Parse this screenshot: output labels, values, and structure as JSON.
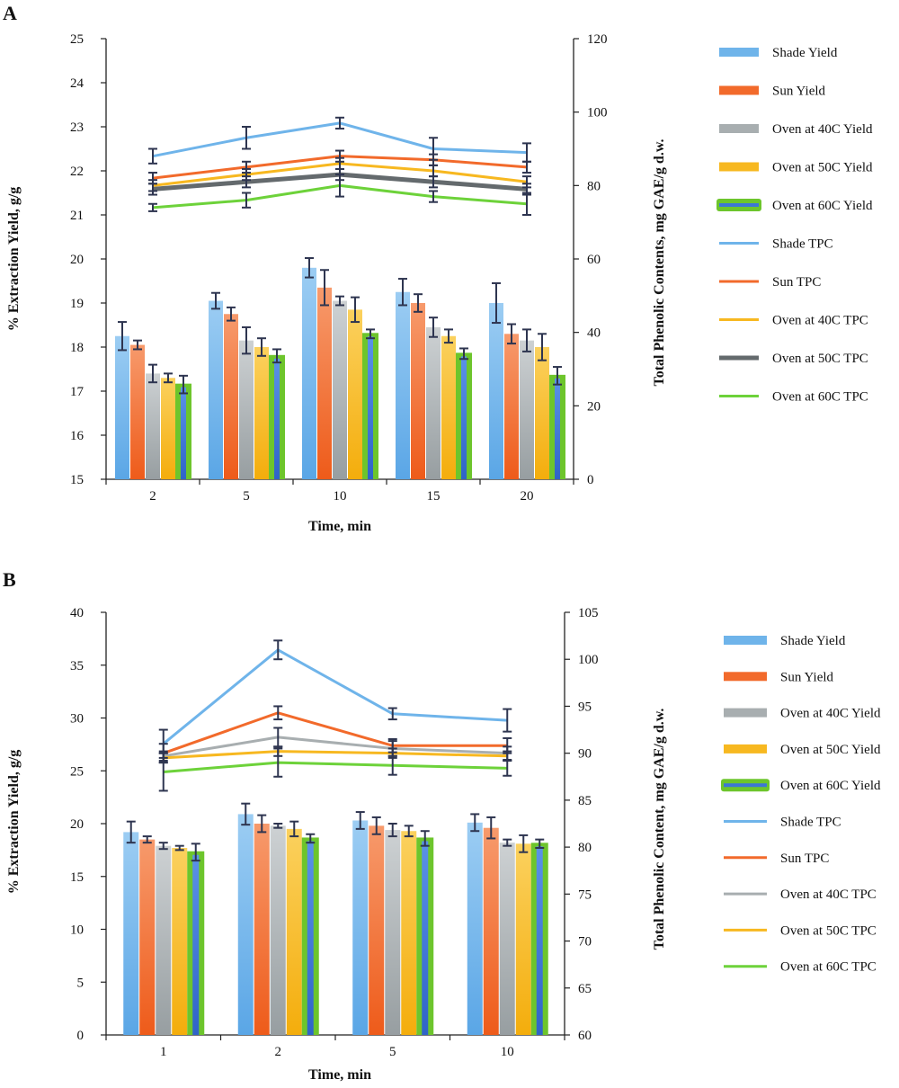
{
  "panels": {
    "A": {
      "letter": "A"
    },
    "B": {
      "letter": "B"
    }
  },
  "colors": {
    "shade": "#6fb4ea",
    "sun": "#f26a2b",
    "oven40": "#a8aeb0",
    "oven50": "#f7b820",
    "oven60_bar": "#3c76d6",
    "oven60_outline": "#6dc52c",
    "oven50_tpc_A": "#646a6d",
    "oven60_tpc": "#6dd23a",
    "error_bar": "#2e3550"
  },
  "chart_data": [
    {
      "id": "A",
      "type": "bar",
      "categories": [
        "2",
        "5",
        "10",
        "15",
        "20"
      ],
      "xlabel": "Time, min",
      "ylabel": "% Extraction Yield, g/g",
      "y2label": "Total Phenolic Contents, mg GAE/g d.w.",
      "ylim": [
        15,
        25
      ],
      "yticks": [
        15,
        16,
        17,
        18,
        19,
        20,
        21,
        22,
        23,
        24,
        25
      ],
      "y2lim": [
        0,
        120
      ],
      "y2ticks": [
        0,
        20,
        40,
        60,
        80,
        100,
        120
      ],
      "bar_series": [
        {
          "name": "Shade Yield",
          "values": [
            18.25,
            19.05,
            19.8,
            19.25,
            19.0
          ],
          "errors": [
            0.32,
            0.18,
            0.22,
            0.3,
            0.45
          ]
        },
        {
          "name": "Sun Yield",
          "values": [
            18.05,
            18.75,
            19.35,
            19.0,
            18.3
          ],
          "errors": [
            0.1,
            0.15,
            0.4,
            0.2,
            0.22
          ]
        },
        {
          "name": "Oven at 40C Yield",
          "values": [
            17.4,
            18.15,
            19.05,
            18.45,
            18.15
          ],
          "errors": [
            0.2,
            0.3,
            0.1,
            0.22,
            0.25
          ]
        },
        {
          "name": "Oven at 50C Yield",
          "values": [
            17.3,
            18.0,
            18.85,
            18.25,
            18.0
          ],
          "errors": [
            0.1,
            0.2,
            0.28,
            0.15,
            0.3
          ]
        },
        {
          "name": "Oven at 60C Yield",
          "values": [
            17.15,
            17.8,
            18.3,
            17.85,
            17.35
          ],
          "errors": [
            0.2,
            0.15,
            0.1,
            0.12,
            0.2
          ]
        }
      ],
      "line_series": [
        {
          "name": "Shade TPC",
          "values": [
            88,
            93,
            97,
            90,
            89
          ],
          "errors": [
            2,
            3,
            1.5,
            3,
            2.5
          ]
        },
        {
          "name": "Sun TPC",
          "values": [
            82,
            85,
            88,
            87,
            85
          ],
          "errors": [
            1.5,
            1.5,
            1.5,
            1.5,
            1.5
          ]
        },
        {
          "name": "Oven at 40C TPC",
          "values": [
            80,
            83,
            86,
            84,
            81
          ],
          "errors": [
            1.5,
            1.5,
            1.5,
            1.5,
            1.5
          ]
        },
        {
          "name": "Oven at 50C TPC",
          "values": [
            79,
            81,
            83,
            81,
            79
          ],
          "errors": [
            1.5,
            1.5,
            1.5,
            1.5,
            1.5
          ]
        },
        {
          "name": "Oven at 60C TPC",
          "values": [
            74,
            76,
            80,
            77,
            75
          ],
          "errors": [
            1,
            2,
            3,
            1.5,
            3
          ]
        }
      ]
    },
    {
      "id": "B",
      "type": "bar",
      "categories": [
        "1",
        "2",
        "5",
        "10"
      ],
      "xlabel": "Time, min",
      "ylabel": "% Extraction Yield, g/g",
      "y2label": "Total Phenolic Content, mg GAE/g d.w.",
      "ylim": [
        0,
        40
      ],
      "yticks": [
        0,
        5,
        10,
        15,
        20,
        25,
        30,
        35,
        40
      ],
      "y2lim": [
        60,
        105
      ],
      "y2ticks": [
        60,
        65,
        70,
        75,
        80,
        85,
        90,
        95,
        100,
        105
      ],
      "bar_series": [
        {
          "name": "Shade Yield",
          "values": [
            19.2,
            20.9,
            20.3,
            20.1
          ],
          "errors": [
            1.0,
            1.0,
            0.8,
            0.8
          ]
        },
        {
          "name": "Sun Yield",
          "values": [
            18.5,
            20.0,
            19.8,
            19.6
          ],
          "errors": [
            0.3,
            0.8,
            0.8,
            1.0
          ]
        },
        {
          "name": "Oven at 40C Yield",
          "values": [
            17.9,
            19.8,
            19.4,
            18.2
          ],
          "errors": [
            0.3,
            0.2,
            0.6,
            0.3
          ]
        },
        {
          "name": "Oven at 50C Yield",
          "values": [
            17.7,
            19.5,
            19.3,
            18.1
          ],
          "errors": [
            0.2,
            0.7,
            0.5,
            0.8
          ]
        },
        {
          "name": "Oven at 60C Yield",
          "values": [
            17.3,
            18.6,
            18.6,
            18.1
          ],
          "errors": [
            0.8,
            0.4,
            0.7,
            0.4
          ]
        }
      ],
      "line_series": [
        {
          "name": "Shade TPC",
          "values": [
            91,
            101,
            94.2,
            93.5
          ],
          "errors": [
            1.5,
            1,
            0.6,
            1.2
          ]
        },
        {
          "name": "Sun TPC",
          "values": [
            90,
            94.3,
            90.8,
            90.8
          ],
          "errors": [
            1,
            0.7,
            0.7,
            0.8
          ]
        },
        {
          "name": "Oven at 40C TPC",
          "values": [
            89.7,
            91.7,
            90.5,
            90.0
          ],
          "errors": [
            0.5,
            1,
            0.8,
            0.7
          ]
        },
        {
          "name": "Oven at 50C TPC",
          "values": [
            89.5,
            90.2,
            90.0,
            89.7
          ],
          "errors": [
            0.5,
            0.5,
            0.5,
            0.5
          ]
        },
        {
          "name": "Oven at 60C TPC",
          "values": [
            88,
            89,
            88.7,
            88.4
          ],
          "errors": [
            2,
            1.5,
            1,
            0.8
          ]
        }
      ]
    }
  ],
  "legends": {
    "A": [
      "Shade Yield",
      "Sun Yield",
      "Oven at 40C Yield",
      "Oven at 50C Yield",
      "Oven at 60C Yield",
      "Shade TPC",
      "Sun TPC",
      "Oven at 40C TPC",
      "Oven at 50C TPC",
      "Oven at 60C TPC"
    ],
    "B": [
      "Shade Yield",
      "Sun Yield",
      "Oven at 40C Yield",
      "Oven at 50C Yield",
      "Oven at 60C Yield",
      "Shade TPC",
      "Sun TPC",
      "Oven at 40C TPC",
      "Oven at 50C TPC",
      "Oven at 60C TPC"
    ]
  }
}
